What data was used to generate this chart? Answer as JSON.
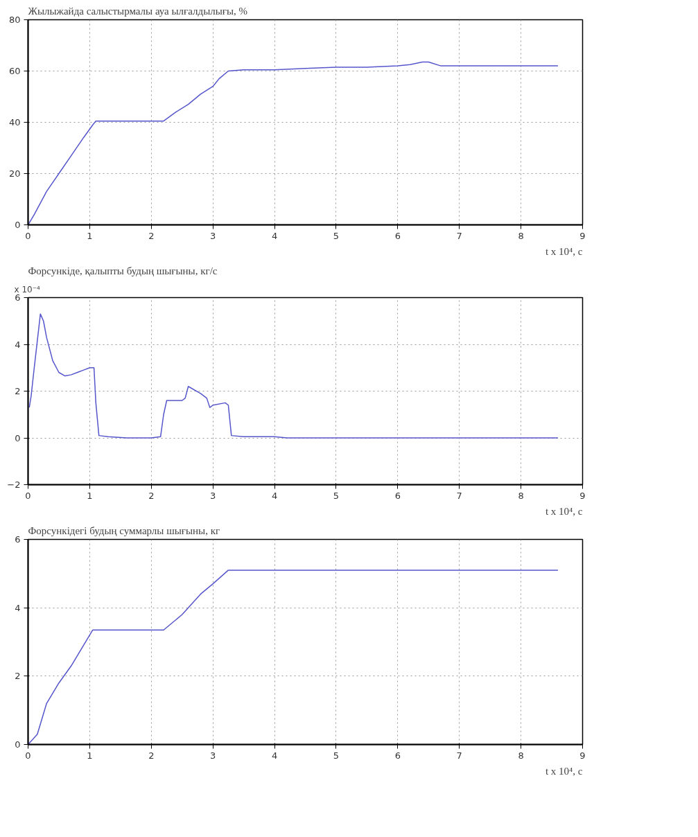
{
  "chart_data": [
    {
      "type": "line",
      "title": "Жылыжайда салыстырмалы ауа ылғалдылығы, %",
      "xlabel": "t x 10⁴, c",
      "x": [
        0,
        0.1,
        0.3,
        0.5,
        0.7,
        0.9,
        1.05,
        1.1,
        1.5,
        2.0,
        2.2,
        2.4,
        2.6,
        2.8,
        3.0,
        3.1,
        3.25,
        3.5,
        4.0,
        4.5,
        5.0,
        5.5,
        6.0,
        6.2,
        6.4,
        6.5,
        6.7,
        7.0,
        8.0,
        8.6
      ],
      "series": [
        {
          "color": "#5555cc",
          "values": [
            0,
            4,
            13,
            20,
            27,
            34,
            39,
            40.5,
            40.5,
            40.5,
            40.5,
            44,
            47,
            51,
            54,
            57,
            60,
            60.5,
            60.5,
            61,
            61.5,
            61.5,
            62,
            62.5,
            63.5,
            63.5,
            62,
            62,
            62,
            62
          ]
        }
      ],
      "xlim": [
        0,
        9
      ],
      "xticks": [
        0,
        1,
        2,
        3,
        4,
        5,
        6,
        7,
        8,
        9
      ],
      "ylim": [
        0,
        80
      ],
      "yticks": [
        0,
        20,
        40,
        60,
        80
      ],
      "grid": true,
      "line_style": "solid"
    },
    {
      "type": "line",
      "title": "Форсункіде, қалыпты будың шығыны, кг/с",
      "ylabel": "x 10⁻⁴",
      "xlabel": "t x 10⁴, c",
      "x": [
        0.02,
        0.05,
        0.1,
        0.2,
        0.25,
        0.3,
        0.4,
        0.5,
        0.6,
        0.7,
        0.8,
        0.9,
        1.0,
        1.07,
        1.1,
        1.15,
        1.3,
        1.6,
        2.0,
        2.15,
        2.2,
        2.25,
        2.5,
        2.55,
        2.6,
        2.8,
        2.9,
        2.95,
        3.0,
        3.2,
        3.25,
        3.3,
        3.5,
        4.0,
        4.2,
        8.6
      ],
      "series": [
        {
          "color": "#5555cc",
          "values": [
            1.3,
            1.8,
            3,
            5.3,
            5.0,
            4.3,
            3.3,
            2.8,
            2.65,
            2.7,
            2.8,
            2.9,
            3.0,
            3.0,
            1.5,
            0.1,
            0.05,
            0,
            0,
            0.05,
            1.0,
            1.6,
            1.6,
            1.7,
            2.2,
            1.9,
            1.7,
            1.3,
            1.4,
            1.5,
            1.4,
            0.1,
            0.05,
            0.05,
            0,
            0
          ]
        }
      ],
      "xlim": [
        0,
        9
      ],
      "xticks": [
        0,
        1,
        2,
        3,
        4,
        5,
        6,
        7,
        8,
        9
      ],
      "ylim": [
        -2,
        6
      ],
      "yticks": [
        -2,
        0,
        2,
        4,
        6
      ],
      "grid": true,
      "line_style": "solid"
    },
    {
      "type": "line",
      "title": "Форсункідегі будың суммарлы шығыны, кг",
      "xlabel": "t x 10⁴, c",
      "x": [
        0,
        0.15,
        0.3,
        0.5,
        0.7,
        0.9,
        1.05,
        1.5,
        2.2,
        2.5,
        2.8,
        3.0,
        3.25,
        4.0,
        8.6
      ],
      "series": [
        {
          "color": "#5555cc",
          "values": [
            0,
            0.3,
            1.2,
            1.8,
            2.3,
            2.9,
            3.35,
            3.35,
            3.35,
            3.8,
            4.4,
            4.7,
            5.1,
            5.1,
            5.1
          ]
        }
      ],
      "xlim": [
        0,
        9
      ],
      "xticks": [
        0,
        1,
        2,
        3,
        4,
        5,
        6,
        7,
        8,
        9
      ],
      "ylim": [
        0,
        6
      ],
      "yticks": [
        0,
        2,
        4,
        6
      ],
      "grid": true,
      "line_style": "solid"
    }
  ]
}
